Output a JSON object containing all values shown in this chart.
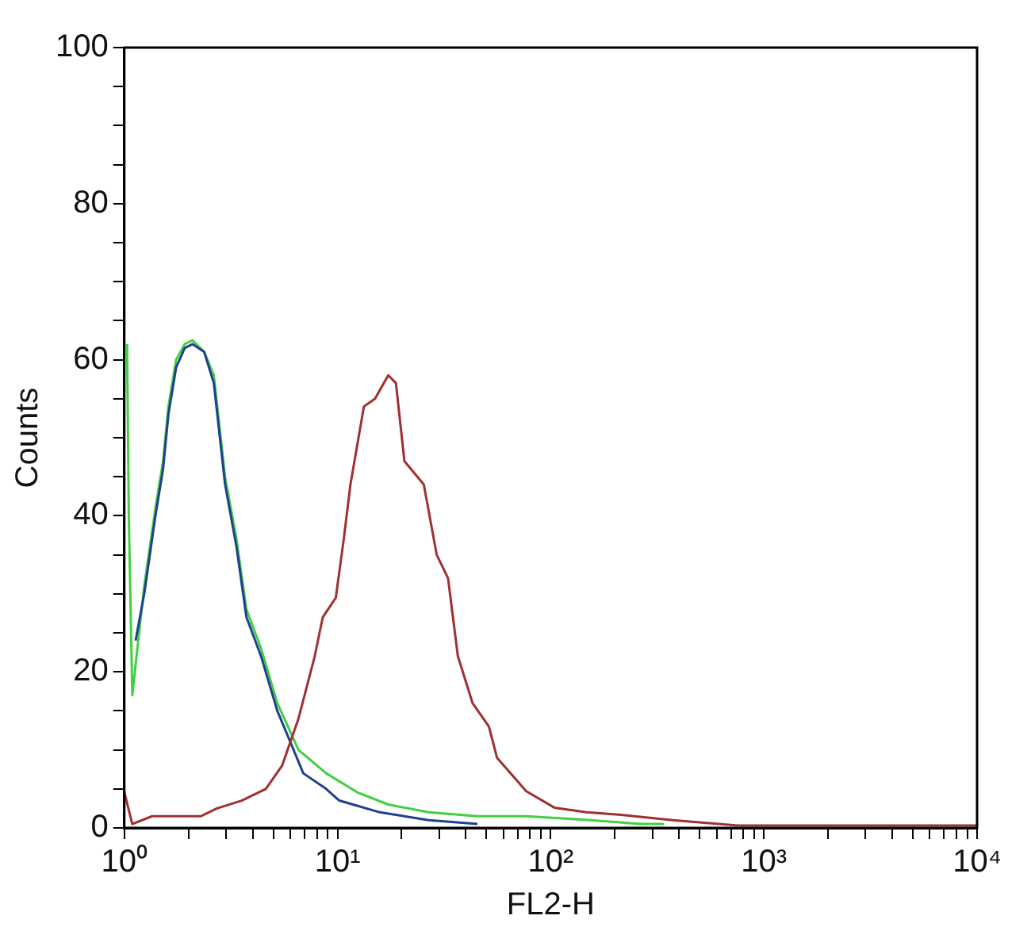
{
  "chart_data": {
    "type": "line",
    "xlabel": "FL2-H",
    "ylabel": "Counts",
    "log": "x",
    "grid": false,
    "legend": false,
    "marker": "none",
    "line_style": "solid",
    "xlim": [
      1,
      10000
    ],
    "ylim": [
      0,
      100
    ],
    "xticks": [
      {
        "value": 1,
        "label": "10⁰"
      },
      {
        "value": 2,
        "label": null
      },
      {
        "value": 3,
        "label": null
      },
      {
        "value": 4,
        "label": null
      },
      {
        "value": 5,
        "label": null
      },
      {
        "value": 6,
        "label": null
      },
      {
        "value": 7,
        "label": null
      },
      {
        "value": 8,
        "label": null
      },
      {
        "value": 9,
        "label": null
      },
      {
        "value": 10,
        "label": "10¹"
      },
      {
        "value": 20,
        "label": null
      },
      {
        "value": 30,
        "label": null
      },
      {
        "value": 40,
        "label": null
      },
      {
        "value": 50,
        "label": null
      },
      {
        "value": 60,
        "label": null
      },
      {
        "value": 70,
        "label": null
      },
      {
        "value": 80,
        "label": null
      },
      {
        "value": 90,
        "label": null
      },
      {
        "value": 100,
        "label": "10²"
      },
      {
        "value": 200,
        "label": null
      },
      {
        "value": 300,
        "label": null
      },
      {
        "value": 400,
        "label": null
      },
      {
        "value": 500,
        "label": null
      },
      {
        "value": 600,
        "label": null
      },
      {
        "value": 700,
        "label": null
      },
      {
        "value": 800,
        "label": null
      },
      {
        "value": 900,
        "label": null
      },
      {
        "value": 1000,
        "label": "10³"
      },
      {
        "value": 2000,
        "label": null
      },
      {
        "value": 3000,
        "label": null
      },
      {
        "value": 4000,
        "label": null
      },
      {
        "value": 5000,
        "label": null
      },
      {
        "value": 6000,
        "label": null
      },
      {
        "value": 7000,
        "label": null
      },
      {
        "value": 8000,
        "label": null
      },
      {
        "value": 9000,
        "label": null
      },
      {
        "value": 10000,
        "label": "10⁴"
      }
    ],
    "yticks": [
      0,
      {
        "value": 5,
        "label": null
      },
      {
        "value": 10,
        "label": null
      },
      {
        "value": 15,
        "label": null
      },
      20,
      {
        "value": 25,
        "label": null
      },
      {
        "value": 30,
        "label": null
      },
      {
        "value": 35,
        "label": null
      },
      40,
      {
        "value": 45,
        "label": null
      },
      {
        "value": 50,
        "label": null
      },
      {
        "value": 55,
        "label": null
      },
      60,
      {
        "value": 65,
        "label": null
      },
      {
        "value": 70,
        "label": null
      },
      {
        "value": 75,
        "label": null
      },
      80,
      {
        "value": 85,
        "label": null
      },
      {
        "value": 90,
        "label": null
      },
      {
        "value": 95,
        "label": null
      },
      100
    ],
    "series": [
      {
        "color": "#a03030",
        "x": [
          1,
          1.09,
          1.35,
          2.29,
          2.72,
          3.55,
          4.61,
          5.5,
          6.56,
          7.82,
          8.53,
          9.82,
          10.7,
          11.5,
          13.3,
          15.0,
          17.3,
          18.8,
          20.6,
          25.4,
          29.2,
          33.0,
          36.7,
          43.0,
          51.3,
          56.0,
          76.8,
          104,
          147,
          209,
          374,
          755,
          2170,
          10000
        ],
        "values": [
          4.6,
          0.5,
          1.5,
          1.5,
          2.5,
          3.5,
          5,
          8,
          14,
          22,
          27,
          29.5,
          37,
          44,
          54,
          55,
          58,
          57,
          47,
          44,
          35,
          32,
          22,
          16,
          13,
          9,
          4.7,
          2.6,
          2,
          1.7,
          1,
          0.3,
          0.3,
          0.3
        ]
      },
      {
        "color": "#1f3f8f",
        "x": [
          1.13,
          1.24,
          1.4,
          1.52,
          1.61,
          1.75,
          1.92,
          2.09,
          2.37,
          2.63,
          2.97,
          3.36,
          3.74,
          4.38,
          5.22,
          6.01,
          6.91,
          8.85,
          10.2,
          15.8,
          26.8,
          45.3
        ],
        "values": [
          24,
          30,
          40,
          46,
          53,
          59,
          61.5,
          62,
          61,
          57,
          44,
          36,
          27,
          22,
          15,
          11,
          7,
          5,
          3.5,
          2,
          1,
          0.5
        ]
      },
      {
        "color": "#40d040",
        "x": [
          1.03,
          1.05,
          1.09,
          1.24,
          1.4,
          1.52,
          1.61,
          1.75,
          1.92,
          2.09,
          2.37,
          2.63,
          2.97,
          3.36,
          3.74,
          4.38,
          5.22,
          6.56,
          8.85,
          12.5,
          17.3,
          26.8,
          45.3,
          76.8,
          155,
          263,
          340
        ],
        "values": [
          62,
          40,
          17,
          31,
          41,
          47,
          54,
          60,
          62,
          62.5,
          61,
          58,
          45,
          37,
          28,
          23,
          16,
          10,
          7,
          4.5,
          3,
          2,
          1.5,
          1.5,
          1,
          0.5,
          0.5
        ]
      }
    ]
  }
}
